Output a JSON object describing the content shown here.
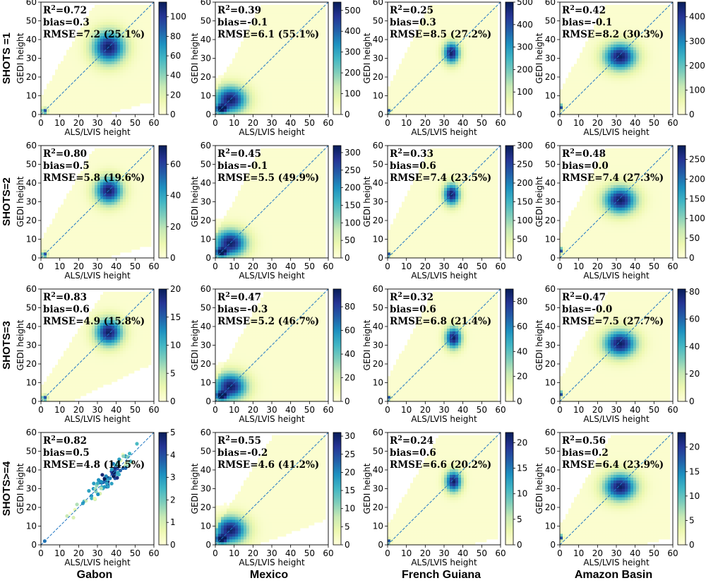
{
  "row_labels": [
    "SHOTS =1",
    "SHOTS=2",
    "SHOTS=3",
    "SHOTS>=4"
  ],
  "col_labels": [
    "Gabon",
    "Mexico",
    "French Guiana",
    "Amazon Basin"
  ],
  "colormap": [
    "#ffffd9",
    "#edf8b1",
    "#c7e9b4",
    "#7fcdbb",
    "#41b6c4",
    "#1d91c0",
    "#225ea8",
    "#253494",
    "#081d58"
  ],
  "chart_data": [
    {
      "type": "heatmap",
      "region": "Gabon",
      "shots": "SHOTS =1",
      "xlabel": "ALS/LVIS height",
      "ylabel": "GEDI height",
      "xlim": [
        0,
        60
      ],
      "ylim": [
        0,
        60
      ],
      "xticks": [
        0,
        10,
        20,
        30,
        40,
        50,
        60
      ],
      "yticks": [
        0,
        10,
        20,
        30,
        40,
        50,
        60
      ],
      "stats": {
        "r2_label": "R",
        "r2_sup": "2",
        "r2_value": "=0.72",
        "bias": "bias=0.3",
        "rmse": "RMSE=7.2 (25.1%)"
      },
      "colorbar": {
        "ticks": [
          0,
          20,
          40,
          60,
          80,
          100
        ],
        "max": 115
      },
      "clusters": [
        {
          "x": 36,
          "y": 36,
          "sx": 6,
          "sy": 6
        },
        {
          "x": 2,
          "y": 2,
          "sx": 1,
          "sy": 1
        }
      ],
      "spread": 1.6,
      "scatter": false
    },
    {
      "type": "heatmap",
      "region": "Mexico",
      "shots": "SHOTS =1",
      "xlabel": "ALS/LVIS height",
      "ylabel": "GEDI height",
      "xlim": [
        0,
        60
      ],
      "ylim": [
        0,
        60
      ],
      "xticks": [
        0,
        10,
        20,
        30,
        40,
        50,
        60
      ],
      "yticks": [
        0,
        10,
        20,
        30,
        40,
        50,
        60
      ],
      "stats": {
        "r2_label": "R",
        "r2_sup": "2",
        "r2_value": "=0.39",
        "bias": "bias=-0.1",
        "rmse": "RMSE=6.1 (55.1%)"
      },
      "colorbar": {
        "ticks": [
          0,
          100,
          200,
          300,
          400,
          500
        ],
        "max": 540
      },
      "clusters": [
        {
          "x": 8,
          "y": 8,
          "sx": 6,
          "sy": 5
        },
        {
          "x": 3,
          "y": 3,
          "sx": 2,
          "sy": 1.5
        }
      ],
      "spread": 2.0,
      "scatter": false
    },
    {
      "type": "heatmap",
      "region": "French Guiana",
      "shots": "SHOTS =1",
      "xlabel": "ALS/LVIS height",
      "ylabel": "GEDI height",
      "xlim": [
        0,
        60
      ],
      "ylim": [
        0,
        60
      ],
      "xticks": [
        0,
        10,
        20,
        30,
        40,
        50,
        60
      ],
      "yticks": [
        0,
        10,
        20,
        30,
        40,
        50,
        60
      ],
      "stats": {
        "r2_label": "R",
        "r2_sup": "2",
        "r2_value": "=0.25",
        "bias": "bias=0.3",
        "rmse": "RMSE=8.5 (27.2%)"
      },
      "colorbar": {
        "ticks": [
          0,
          100,
          200,
          300,
          400,
          500
        ],
        "max": 500
      },
      "clusters": [
        {
          "x": 34,
          "y": 33,
          "sx": 3,
          "sy": 4
        },
        {
          "x": 1,
          "y": 2,
          "sx": 0.6,
          "sy": 0.8
        }
      ],
      "spread": 2.2,
      "scatter": false
    },
    {
      "type": "heatmap",
      "region": "Amazon Basin",
      "shots": "SHOTS =1",
      "xlabel": "ALS/LVIS height",
      "ylabel": "GEDI height",
      "xlim": [
        0,
        60
      ],
      "ylim": [
        0,
        60
      ],
      "xticks": [
        0,
        10,
        20,
        30,
        40,
        50,
        60
      ],
      "yticks": [
        0,
        10,
        20,
        30,
        40,
        50,
        60
      ],
      "stats": {
        "r2_label": "R",
        "r2_sup": "2",
        "r2_value": "=0.42",
        "bias": "bias=-0.1",
        "rmse": "RMSE=8.2 (30.3%)"
      },
      "colorbar": {
        "ticks": [
          0,
          100,
          200,
          300,
          400
        ],
        "max": 460
      },
      "clusters": [
        {
          "x": 32,
          "y": 31,
          "sx": 6,
          "sy": 5
        },
        {
          "x": 1,
          "y": 4,
          "sx": 0.6,
          "sy": 1
        }
      ],
      "spread": 2.0,
      "scatter": false
    },
    {
      "type": "heatmap",
      "region": "Gabon",
      "shots": "SHOTS=2",
      "xlabel": "ALS/LVIS height",
      "ylabel": "GEDI height",
      "xlim": [
        0,
        60
      ],
      "ylim": [
        0,
        60
      ],
      "xticks": [
        0,
        10,
        20,
        30,
        40,
        50,
        60
      ],
      "yticks": [
        0,
        10,
        20,
        30,
        40,
        50,
        60
      ],
      "stats": {
        "r2_label": "R",
        "r2_sup": "2",
        "r2_value": "=0.80",
        "bias": "bias=0.5",
        "rmse": "RMSE=5.8 (19.6%)"
      },
      "colorbar": {
        "ticks": [
          0,
          20,
          40,
          60
        ],
        "max": 72
      },
      "clusters": [
        {
          "x": 36,
          "y": 36,
          "sx": 5,
          "sy": 5
        },
        {
          "x": 2,
          "y": 2,
          "sx": 1,
          "sy": 1
        }
      ],
      "spread": 1.6,
      "scatter": false
    },
    {
      "type": "heatmap",
      "region": "Mexico",
      "shots": "SHOTS=2",
      "xlabel": "ALS/LVIS height",
      "ylabel": "GEDI height",
      "xlim": [
        0,
        60
      ],
      "ylim": [
        0,
        60
      ],
      "xticks": [
        0,
        10,
        20,
        30,
        40,
        50,
        60
      ],
      "yticks": [
        0,
        10,
        20,
        30,
        40,
        50,
        60
      ],
      "stats": {
        "r2_label": "R",
        "r2_sup": "2",
        "r2_value": "=0.45",
        "bias": "bias=-0.1",
        "rmse": "RMSE=5.5 (49.9%)"
      },
      "colorbar": {
        "ticks": [
          0,
          50,
          100,
          150,
          200,
          250,
          300
        ],
        "max": 320
      },
      "clusters": [
        {
          "x": 8,
          "y": 8,
          "sx": 6,
          "sy": 5
        },
        {
          "x": 3,
          "y": 3,
          "sx": 2,
          "sy": 1.5
        }
      ],
      "spread": 2.0,
      "scatter": false
    },
    {
      "type": "heatmap",
      "region": "French Guiana",
      "shots": "SHOTS=2",
      "xlabel": "ALS/LVIS height",
      "ylabel": "GEDI height",
      "xlim": [
        0,
        60
      ],
      "ylim": [
        0,
        60
      ],
      "xticks": [
        0,
        10,
        20,
        30,
        40,
        50,
        60
      ],
      "yticks": [
        0,
        10,
        20,
        30,
        40,
        50,
        60
      ],
      "stats": {
        "r2_label": "R",
        "r2_sup": "2",
        "r2_value": "=0.33",
        "bias": "bias=0.6",
        "rmse": "RMSE=7.4 (23.5%)"
      },
      "colorbar": {
        "ticks": [
          0,
          50,
          100,
          150,
          200,
          250,
          300
        ],
        "max": 300
      },
      "clusters": [
        {
          "x": 34,
          "y": 34,
          "sx": 3,
          "sy": 4
        },
        {
          "x": 1,
          "y": 2,
          "sx": 0.6,
          "sy": 0.8
        }
      ],
      "spread": 2.2,
      "scatter": false
    },
    {
      "type": "heatmap",
      "region": "Amazon Basin",
      "shots": "SHOTS=2",
      "xlabel": "ALS/LVIS height",
      "ylabel": "GEDI height",
      "xlim": [
        0,
        60
      ],
      "ylim": [
        0,
        60
      ],
      "xticks": [
        0,
        10,
        20,
        30,
        40,
        50,
        60
      ],
      "yticks": [
        0,
        10,
        20,
        30,
        40,
        50,
        60
      ],
      "stats": {
        "r2_label": "R",
        "r2_sup": "2",
        "r2_value": "=0.48",
        "bias": "bias=0.0",
        "rmse": "RMSE=7.4 (27.3%)"
      },
      "colorbar": {
        "ticks": [
          0,
          50,
          100,
          150,
          200,
          250
        ],
        "max": 285
      },
      "clusters": [
        {
          "x": 32,
          "y": 31,
          "sx": 6,
          "sy": 5
        },
        {
          "x": 1,
          "y": 4,
          "sx": 0.6,
          "sy": 1
        }
      ],
      "spread": 2.0,
      "scatter": false
    },
    {
      "type": "heatmap",
      "region": "Gabon",
      "shots": "SHOTS=3",
      "xlabel": "ALS/LVIS height",
      "ylabel": "GEDI height",
      "xlim": [
        0,
        60
      ],
      "ylim": [
        0,
        60
      ],
      "xticks": [
        0,
        10,
        20,
        30,
        40,
        50,
        60
      ],
      "yticks": [
        0,
        10,
        20,
        30,
        40,
        50,
        60
      ],
      "stats": {
        "r2_label": "R",
        "r2_sup": "2",
        "r2_value": "=0.83",
        "bias": "bias=0.6",
        "rmse": "RMSE=4.9 (15.8%)"
      },
      "colorbar": {
        "ticks": [
          0,
          5,
          10,
          15,
          20
        ],
        "max": 20
      },
      "clusters": [
        {
          "x": 36,
          "y": 37,
          "sx": 5,
          "sy": 5
        },
        {
          "x": 2,
          "y": 2,
          "sx": 1,
          "sy": 1
        }
      ],
      "spread": 1.2,
      "scatter": false
    },
    {
      "type": "heatmap",
      "region": "Mexico",
      "shots": "SHOTS=3",
      "xlabel": "ALS/LVIS height",
      "ylabel": "GEDI height",
      "xlim": [
        0,
        60
      ],
      "ylim": [
        0,
        60
      ],
      "xticks": [
        0,
        10,
        20,
        30,
        40,
        50,
        60
      ],
      "yticks": [
        0,
        10,
        20,
        30,
        40,
        50,
        60
      ],
      "stats": {
        "r2_label": "R",
        "r2_sup": "2",
        "r2_value": "=0.47",
        "bias": "bias=-0.3",
        "rmse": "RMSE=5.2 (46.7%)"
      },
      "colorbar": {
        "ticks": [
          0,
          20,
          40,
          60,
          80
        ],
        "max": 95
      },
      "clusters": [
        {
          "x": 8,
          "y": 8,
          "sx": 6,
          "sy": 5
        },
        {
          "x": 3,
          "y": 3,
          "sx": 2,
          "sy": 1.5
        }
      ],
      "spread": 1.8,
      "scatter": false
    },
    {
      "type": "heatmap",
      "region": "French Guiana",
      "shots": "SHOTS=3",
      "xlabel": "ALS/LVIS height",
      "ylabel": "GEDI height",
      "xlim": [
        0,
        60
      ],
      "ylim": [
        0,
        60
      ],
      "xticks": [
        0,
        10,
        20,
        30,
        40,
        50,
        60
      ],
      "yticks": [
        0,
        10,
        20,
        30,
        40,
        50,
        60
      ],
      "stats": {
        "r2_label": "R",
        "r2_sup": "2",
        "r2_value": "=0.32",
        "bias": "bias=0.6",
        "rmse": "RMSE=6.8 (21.4%)"
      },
      "colorbar": {
        "ticks": [
          0,
          20,
          40,
          60,
          80
        ],
        "max": 90
      },
      "clusters": [
        {
          "x": 35,
          "y": 34,
          "sx": 3,
          "sy": 4
        },
        {
          "x": 1,
          "y": 2,
          "sx": 0.6,
          "sy": 0.8
        }
      ],
      "spread": 2.0,
      "scatter": false
    },
    {
      "type": "heatmap",
      "region": "Amazon Basin",
      "shots": "SHOTS=3",
      "xlabel": "ALS/LVIS height",
      "ylabel": "GEDI height",
      "xlim": [
        0,
        60
      ],
      "ylim": [
        0,
        60
      ],
      "xticks": [
        0,
        10,
        20,
        30,
        40,
        50,
        60
      ],
      "yticks": [
        0,
        10,
        20,
        30,
        40,
        50,
        60
      ],
      "stats": {
        "r2_label": "R",
        "r2_sup": "2",
        "r2_value": "=0.47",
        "bias": "bias=-0.0",
        "rmse": "RMSE=7.5 (27.7%)"
      },
      "colorbar": {
        "ticks": [
          0,
          20,
          40,
          60,
          80
        ],
        "max": 82
      },
      "clusters": [
        {
          "x": 32,
          "y": 31,
          "sx": 6,
          "sy": 5
        },
        {
          "x": 1,
          "y": 4,
          "sx": 0.6,
          "sy": 1
        }
      ],
      "spread": 1.9,
      "scatter": false
    },
    {
      "type": "scatter",
      "region": "Gabon",
      "shots": "SHOTS>=4",
      "xlabel": "ALS/LVIS height",
      "ylabel": "GEDI height",
      "xlim": [
        0,
        60
      ],
      "ylim": [
        0,
        60
      ],
      "xticks": [
        0,
        10,
        20,
        30,
        40,
        50,
        60
      ],
      "yticks": [
        0,
        10,
        20,
        30,
        40,
        50,
        60
      ],
      "stats": {
        "r2_label": "R",
        "r2_sup": "2",
        "r2_value": "=0.82",
        "bias": "bias=0.5",
        "rmse": "RMSE=4.8 (14.5%)"
      },
      "colorbar": {
        "ticks": [
          0,
          1,
          2,
          3,
          4,
          5
        ],
        "max": 5
      },
      "clusters": [
        {
          "x": 36,
          "y": 37,
          "sx": 6,
          "sy": 6
        },
        {
          "x": 2,
          "y": 2,
          "sx": 0.6,
          "sy": 0.6
        }
      ],
      "spread": 1.0,
      "scatter": true
    },
    {
      "type": "heatmap",
      "region": "Mexico",
      "shots": "SHOTS>=4",
      "xlabel": "ALS/LVIS height",
      "ylabel": "GEDI height",
      "xlim": [
        0,
        60
      ],
      "ylim": [
        0,
        60
      ],
      "xticks": [
        0,
        10,
        20,
        30,
        40,
        50,
        60
      ],
      "yticks": [
        0,
        10,
        20,
        30,
        40,
        50,
        60
      ],
      "stats": {
        "r2_label": "R",
        "r2_sup": "2",
        "r2_value": "=0.55",
        "bias": "bias=-0.2",
        "rmse": "RMSE=4.6 (41.2%)"
      },
      "colorbar": {
        "ticks": [
          0,
          5,
          10,
          15,
          20,
          25,
          30
        ],
        "max": 31
      },
      "clusters": [
        {
          "x": 8,
          "y": 8,
          "sx": 6,
          "sy": 5
        },
        {
          "x": 3,
          "y": 3,
          "sx": 2,
          "sy": 1.5
        }
      ],
      "spread": 1.4,
      "scatter": false
    },
    {
      "type": "heatmap",
      "region": "French Guiana",
      "shots": "SHOTS>=4",
      "xlabel": "ALS/LVIS height",
      "ylabel": "GEDI height",
      "xlim": [
        0,
        60
      ],
      "ylim": [
        0,
        60
      ],
      "xticks": [
        0,
        10,
        20,
        30,
        40,
        50,
        60
      ],
      "yticks": [
        0,
        10,
        20,
        30,
        40,
        50,
        60
      ],
      "stats": {
        "r2_label": "R",
        "r2_sup": "2",
        "r2_value": "=0.24",
        "bias": "bias=0.6",
        "rmse": "RMSE=6.6 (20.2%)"
      },
      "colorbar": {
        "ticks": [
          0,
          5,
          10,
          15,
          20
        ],
        "max": 22
      },
      "clusters": [
        {
          "x": 35,
          "y": 34,
          "sx": 3,
          "sy": 4
        },
        {
          "x": 1,
          "y": 2,
          "sx": 0.6,
          "sy": 0.8
        }
      ],
      "spread": 1.7,
      "scatter": false
    },
    {
      "type": "heatmap",
      "region": "Amazon Basin",
      "shots": "SHOTS>=4",
      "xlabel": "ALS/LVIS height",
      "ylabel": "GEDI height",
      "xlim": [
        0,
        60
      ],
      "ylim": [
        0,
        60
      ],
      "xticks": [
        0,
        10,
        20,
        30,
        40,
        50,
        60
      ],
      "yticks": [
        0,
        10,
        20,
        30,
        40,
        50,
        60
      ],
      "stats": {
        "r2_label": "R",
        "r2_sup": "2",
        "r2_value": "=0.56",
        "bias": "bias=0.2",
        "rmse": "RMSE=6.4 (23.9%)"
      },
      "colorbar": {
        "ticks": [
          0,
          5,
          10,
          15,
          20
        ],
        "max": 23
      },
      "clusters": [
        {
          "x": 32,
          "y": 31,
          "sx": 6,
          "sy": 5
        },
        {
          "x": 1,
          "y": 4,
          "sx": 0.6,
          "sy": 1
        }
      ],
      "spread": 1.7,
      "scatter": false
    }
  ]
}
